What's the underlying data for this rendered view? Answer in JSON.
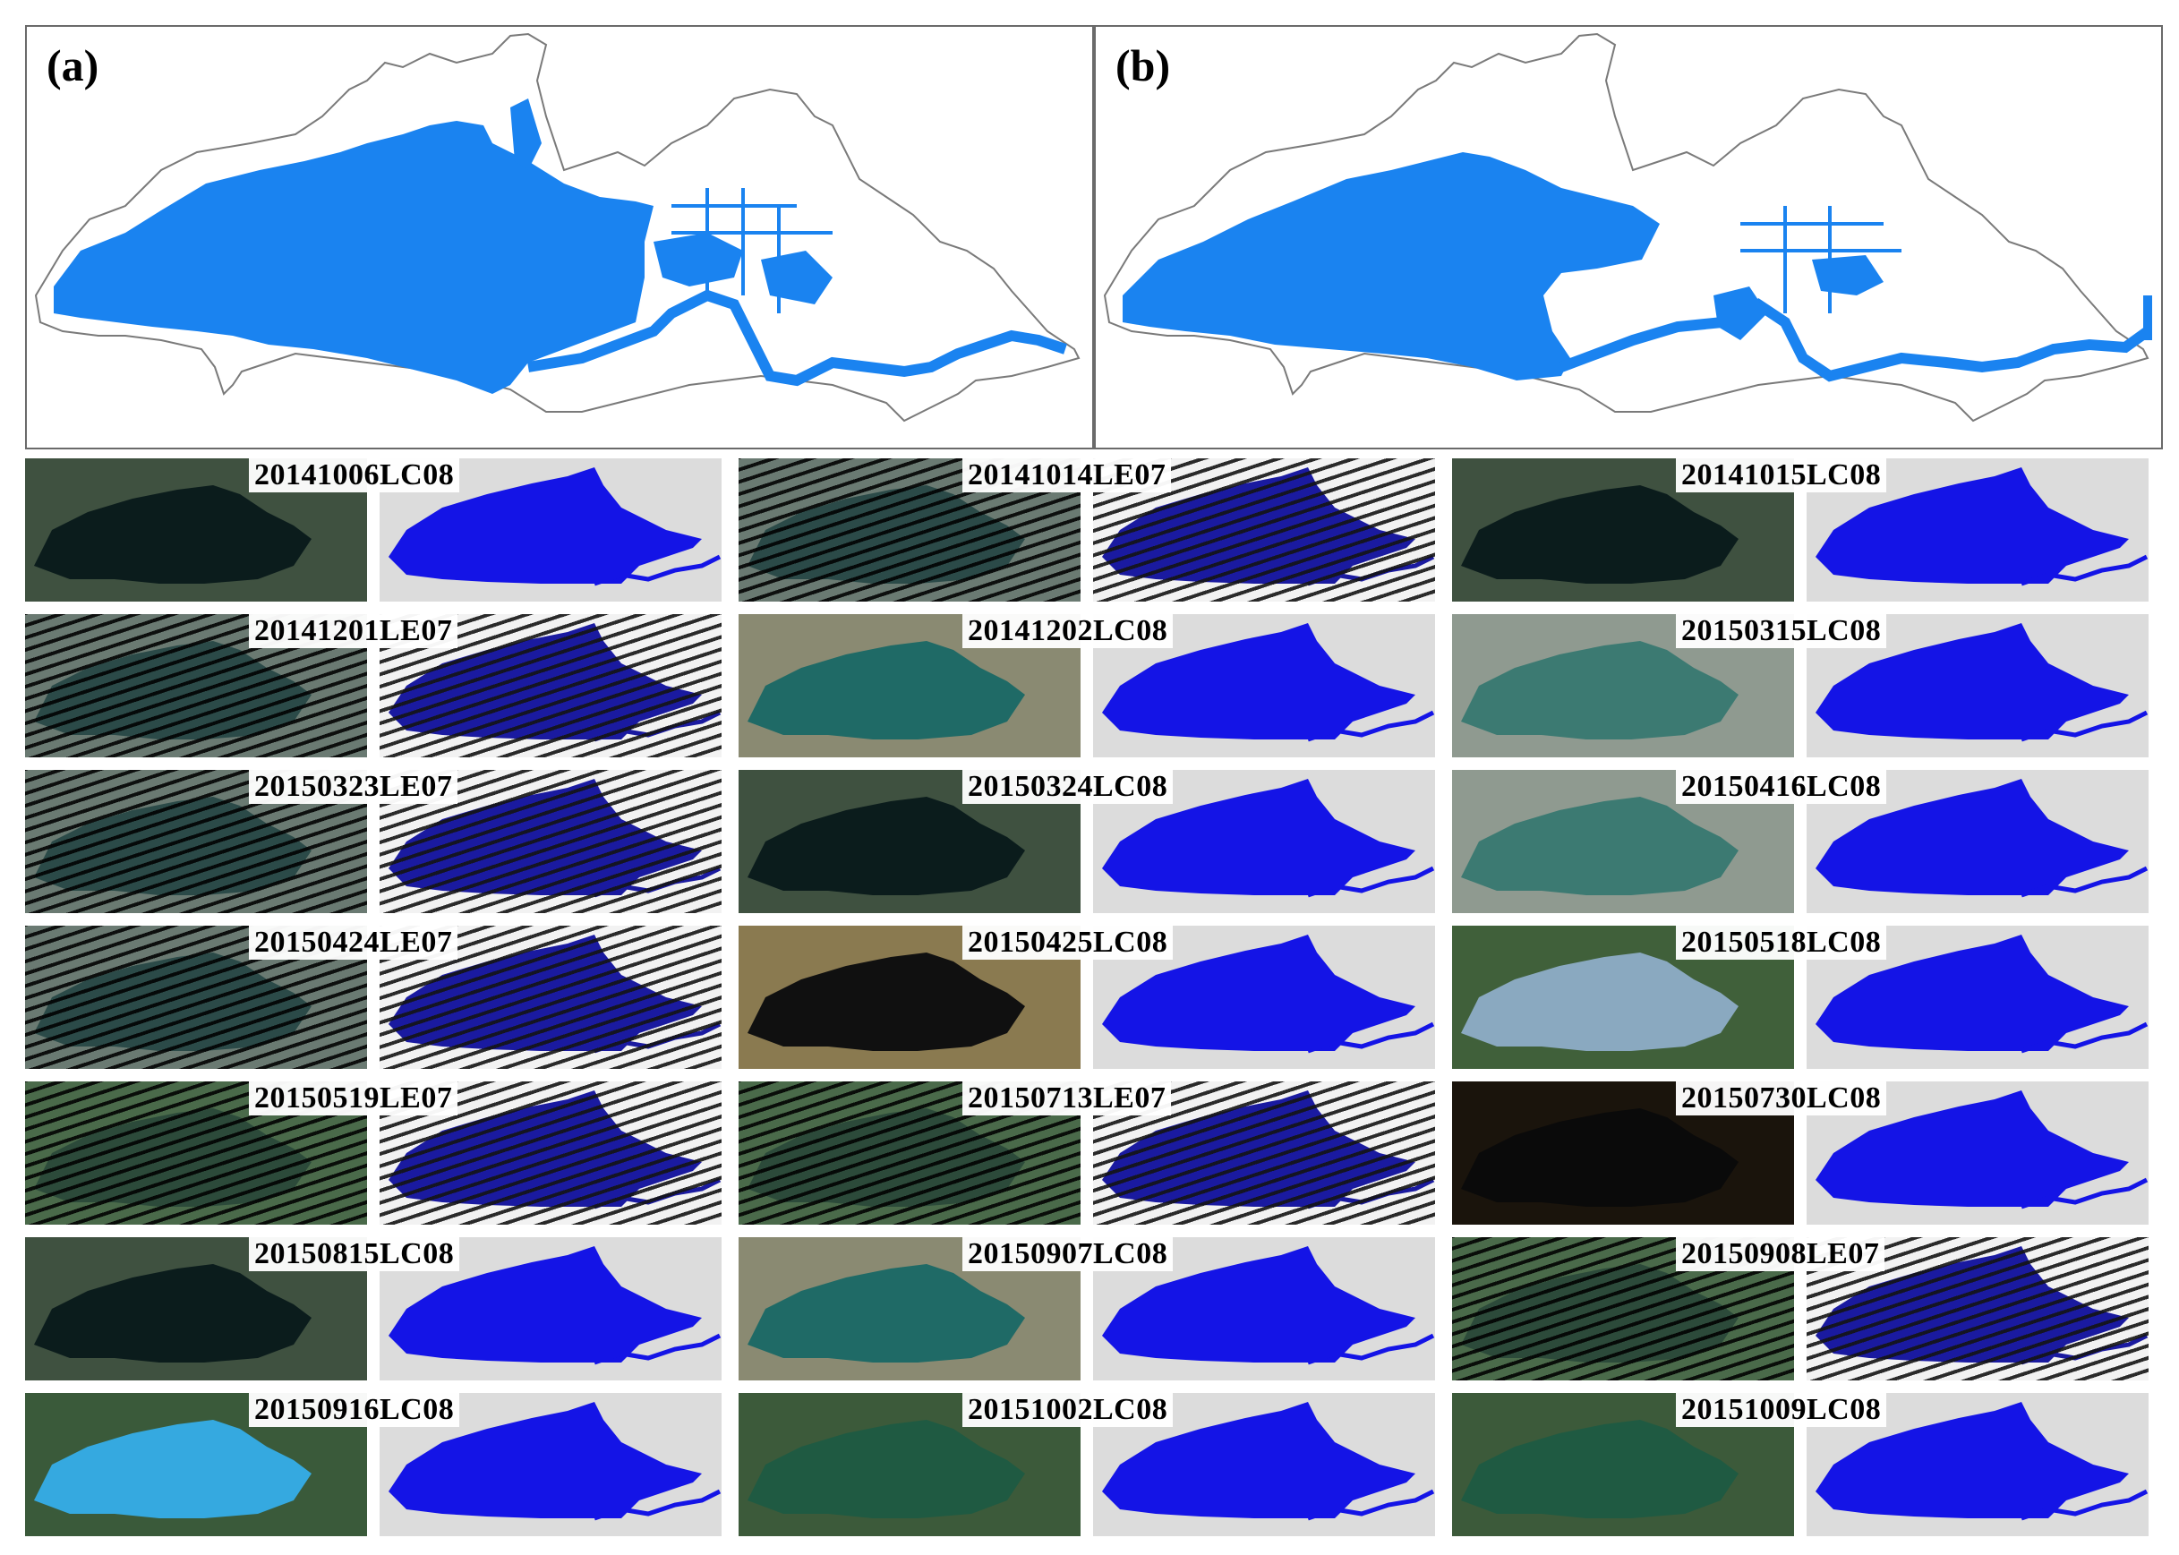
{
  "panels": [
    {
      "label": "(a)"
    },
    {
      "label": "(b)"
    }
  ],
  "colors": {
    "water": "#1a83f0",
    "mask_water": "#1414e6",
    "outline": "#7a7a7a",
    "mask_land": "#dcdcdc"
  },
  "scenes": [
    {
      "date": "20141006LC08",
      "sensor": "LC08",
      "tone": "dark"
    },
    {
      "date": "20141014LE07",
      "sensor": "LE07",
      "tone": "haze"
    },
    {
      "date": "20141015LC08",
      "sensor": "LC08",
      "tone": "dark"
    },
    {
      "date": "20141201LE07",
      "sensor": "LE07",
      "tone": "haze"
    },
    {
      "date": "20141202LC08",
      "sensor": "LC08",
      "tone": "teal"
    },
    {
      "date": "20150315LC08",
      "sensor": "LC08",
      "tone": "teal-haze"
    },
    {
      "date": "20150323LE07",
      "sensor": "LE07",
      "tone": "haze"
    },
    {
      "date": "20150324LC08",
      "sensor": "LC08",
      "tone": "dark"
    },
    {
      "date": "20150416LC08",
      "sensor": "LC08",
      "tone": "teal-haze"
    },
    {
      "date": "20150424LE07",
      "sensor": "LE07",
      "tone": "haze"
    },
    {
      "date": "20150425LC08",
      "sensor": "LC08",
      "tone": "cloud"
    },
    {
      "date": "20150518LC08",
      "sensor": "LC08",
      "tone": "sky"
    },
    {
      "date": "20150519LE07",
      "sensor": "LE07",
      "tone": "green"
    },
    {
      "date": "20150713LE07",
      "sensor": "LE07",
      "tone": "green"
    },
    {
      "date": "20150730LC08",
      "sensor": "LC08",
      "tone": "black"
    },
    {
      "date": "20150815LC08",
      "sensor": "LC08",
      "tone": "dark"
    },
    {
      "date": "20150907LC08",
      "sensor": "LC08",
      "tone": "teal"
    },
    {
      "date": "20150908LE07",
      "sensor": "LE07",
      "tone": "green"
    },
    {
      "date": "20150916LC08",
      "sensor": "LC08",
      "tone": "cyan"
    },
    {
      "date": "20151002LC08",
      "sensor": "LC08",
      "tone": "green-lake"
    },
    {
      "date": "20151009LC08",
      "sensor": "LC08",
      "tone": "green-lake"
    }
  ]
}
